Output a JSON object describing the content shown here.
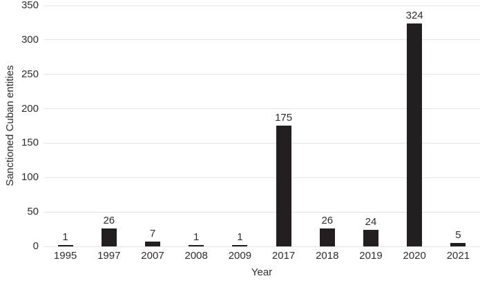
{
  "chart_data": {
    "type": "bar",
    "categories": [
      "1995",
      "1997",
      "2007",
      "2008",
      "2009",
      "2017",
      "2018",
      "2019",
      "2020",
      "2021"
    ],
    "values": [
      1,
      26,
      7,
      1,
      1,
      175,
      26,
      24,
      324,
      5
    ],
    "value_labels": [
      "1",
      "26",
      "7",
      "1",
      "1",
      "175",
      "26",
      "24",
      "324",
      "5"
    ],
    "title": "",
    "xlabel": "Year",
    "ylabel": "Sanctioned Cuban entities",
    "ylim": [
      0,
      350
    ],
    "yticks": [
      0,
      50,
      100,
      150,
      200,
      250,
      300,
      350
    ],
    "grid": true,
    "legend": "none",
    "bar_color": "#231f20",
    "gridline_color": "#e4e4e4",
    "text_color": "#2d2d2d",
    "background_color": "#ffffff"
  }
}
